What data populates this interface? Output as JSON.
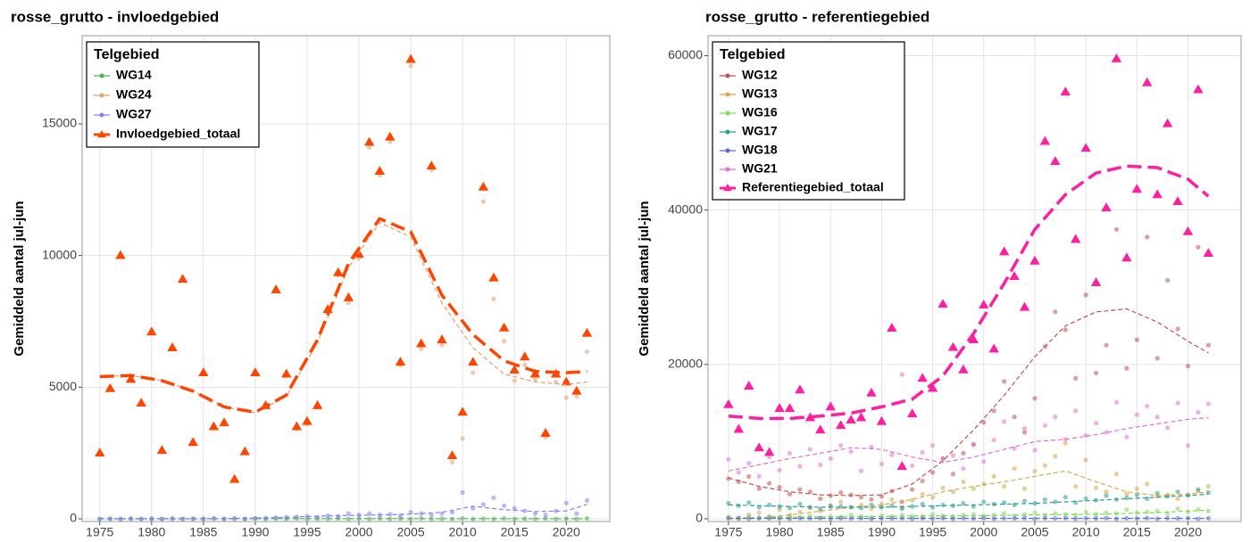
{
  "chart_data": [
    {
      "type": "scatter",
      "title": "rosse_grutto - invloedgebied",
      "ylabel": "Gemiddeld aantal jul-jun",
      "legend_title": "Telgebied",
      "legend": "top-left",
      "grid": true,
      "x": [
        1975,
        1976,
        1977,
        1978,
        1979,
        1980,
        1981,
        1982,
        1983,
        1984,
        1985,
        1986,
        1987,
        1988,
        1989,
        1990,
        1991,
        1992,
        1993,
        1994,
        1995,
        1996,
        1997,
        1998,
        1999,
        2000,
        2001,
        2002,
        2003,
        2004,
        2005,
        2006,
        2007,
        2008,
        2009,
        2010,
        2011,
        2012,
        2013,
        2014,
        2015,
        2016,
        2017,
        2018,
        2019,
        2020,
        2021,
        2022
      ],
      "trend_x": [
        1975,
        1978,
        1981,
        1984,
        1987,
        1990,
        1993,
        1996,
        1999,
        2002,
        2005,
        2008,
        2011,
        2014,
        2017,
        2020,
        2022
      ],
      "xlim": [
        1973.3,
        2024.2
      ],
      "xticks": [
        1975,
        1980,
        1985,
        1990,
        1995,
        2000,
        2005,
        2010,
        2015,
        2020
      ],
      "ylim": [
        -100,
        18350
      ],
      "yticks": [
        0,
        5000,
        10000,
        15000
      ],
      "series": [
        {
          "name": "WG14",
          "color": "#4caf50",
          "marker": "circle",
          "values": [
            0,
            10,
            0,
            20,
            0,
            10,
            0,
            20,
            0,
            10,
            0,
            20,
            0,
            10,
            0,
            20,
            0,
            10,
            0,
            20,
            0,
            10,
            0,
            20,
            0,
            10,
            0,
            20,
            0,
            10,
            0,
            20,
            0,
            10,
            0,
            20,
            0,
            10,
            0,
            20,
            0,
            10,
            0,
            20,
            0,
            10,
            0,
            20
          ],
          "trend": [
            10,
            10,
            10,
            10,
            10,
            10,
            10,
            10,
            10,
            10,
            10,
            10,
            10,
            10,
            10,
            10,
            10
          ]
        },
        {
          "name": "WG24",
          "color": "#e0a070",
          "marker": "circle",
          "values": [
            2500,
            4950,
            10000,
            5300,
            4400,
            7100,
            2600,
            6500,
            9100,
            2900,
            5550,
            3490,
            3650,
            1480,
            2550,
            5530,
            4270,
            8650,
            5440,
            3420,
            3600,
            4240,
            7830,
            9250,
            8200,
            9900,
            14100,
            13050,
            14320,
            5830,
            17200,
            6450,
            13250,
            6600,
            2150,
            3050,
            5550,
            12050,
            8350,
            6750,
            5250,
            5850,
            5300,
            3100,
            5200,
            4600,
            4650,
            6350
          ],
          "trend": [
            5400,
            5450,
            5250,
            4850,
            4250,
            4030,
            4650,
            6700,
            9550,
            11250,
            10700,
            8200,
            6500,
            5500,
            5200,
            5100,
            5200
          ]
        },
        {
          "name": "WG27",
          "color": "#8080f0",
          "marker": "circle",
          "values": [
            0,
            0,
            0,
            0,
            0,
            0,
            0,
            0,
            0,
            0,
            0,
            10,
            0,
            20,
            0,
            20,
            30,
            50,
            60,
            80,
            100,
            60,
            120,
            100,
            200,
            150,
            200,
            150,
            180,
            120,
            250,
            200,
            150,
            200,
            250,
            1000,
            400,
            550,
            800,
            500,
            400,
            300,
            200,
            150,
            300,
            600,
            200,
            700
          ],
          "trend": [
            0,
            0,
            0,
            0,
            10,
            30,
            60,
            100,
            130,
            150,
            180,
            250,
            480,
            350,
            280,
            300,
            550
          ]
        },
        {
          "name": "Invloedgebied_totaal",
          "color": "#ff4500",
          "marker": "triangle",
          "values": [
            2500,
            4950,
            10000,
            5300,
            4400,
            7100,
            2600,
            6500,
            9100,
            2900,
            5550,
            3500,
            3650,
            1500,
            2550,
            5550,
            4300,
            8700,
            5500,
            3500,
            3700,
            4300,
            7950,
            9350,
            8400,
            10050,
            14300,
            13200,
            14500,
            5950,
            17450,
            6650,
            13400,
            6800,
            2400,
            4050,
            5950,
            12600,
            9150,
            7250,
            5650,
            6150,
            5500,
            3250,
            5500,
            5200,
            4850,
            7050
          ],
          "trend": [
            5400,
            5450,
            5250,
            4850,
            4250,
            4050,
            4700,
            6800,
            9700,
            11400,
            10900,
            8500,
            7000,
            6000,
            5600,
            5550,
            5600
          ]
        }
      ]
    },
    {
      "type": "scatter",
      "title": "rosse_grutto - referentiegebied",
      "ylabel": "Gemiddeld aantal jul-jun",
      "legend_title": "Telgebied",
      "legend": "top-left",
      "grid": true,
      "x": [
        1975,
        1976,
        1977,
        1978,
        1979,
        1980,
        1981,
        1982,
        1983,
        1984,
        1985,
        1986,
        1987,
        1988,
        1989,
        1990,
        1991,
        1992,
        1993,
        1994,
        1995,
        1996,
        1997,
        1998,
        1999,
        2000,
        2001,
        2002,
        2003,
        2004,
        2005,
        2006,
        2007,
        2008,
        2009,
        2010,
        2011,
        2012,
        2013,
        2014,
        2015,
        2016,
        2017,
        2018,
        2019,
        2020,
        2021,
        2022
      ],
      "trend_x": [
        1975,
        1978,
        1981,
        1984,
        1987,
        1990,
        1993,
        1996,
        1999,
        2002,
        2005,
        2008,
        2011,
        2014,
        2017,
        2020,
        2022
      ],
      "xlim": [
        1973.0,
        2025.2
      ],
      "xticks": [
        1975,
        1980,
        1985,
        1990,
        1995,
        2000,
        2005,
        2010,
        2015,
        2020
      ],
      "ylim": [
        -350,
        62600
      ],
      "yticks": [
        0,
        20000,
        40000,
        60000
      ],
      "series": [
        {
          "name": "WG12",
          "color": "#c0504d",
          "marker": "circle",
          "values": [
            5200,
            4800,
            5500,
            3900,
            4600,
            4100,
            3200,
            3800,
            3500,
            2600,
            3000,
            3400,
            3100,
            2800,
            2500,
            2900,
            3600,
            2200,
            3800,
            4900,
            6000,
            7800,
            5800,
            8500,
            9600,
            12500,
            14000,
            17800,
            13200,
            11200,
            15600,
            22300,
            26800,
            24500,
            18200,
            29000,
            18900,
            22500,
            37500,
            19500,
            23200,
            36500,
            20800,
            30900,
            24600,
            19800,
            35200,
            22500
          ],
          "trend": [
            5300,
            4200,
            3500,
            3100,
            3000,
            3100,
            4500,
            7500,
            11500,
            16000,
            21000,
            25000,
            26800,
            27200,
            25500,
            23000,
            21500
          ]
        },
        {
          "name": "WG13",
          "color": "#d4a84b",
          "marker": "circle",
          "values": [
            200,
            0,
            500,
            800,
            300,
            1200,
            500,
            900,
            1400,
            1000,
            1600,
            2200,
            1500,
            1800,
            1300,
            1900,
            2500,
            1500,
            2400,
            3200,
            2800,
            4000,
            3500,
            4800,
            3900,
            4500,
            5500,
            4200,
            6500,
            3900,
            6200,
            6900,
            8100,
            9800,
            4200,
            7600,
            4000,
            3500,
            5800,
            3200,
            3900,
            4500,
            2900,
            3100,
            2600,
            3000,
            3600,
            4200
          ],
          "trend": [
            0,
            100,
            500,
            1000,
            1500,
            1800,
            2500,
            3500,
            4200,
            4800,
            5500,
            6200,
            4800,
            3500,
            3000,
            3200,
            3500
          ]
        },
        {
          "name": "WG16",
          "color": "#7ed957",
          "marker": "circle",
          "values": [
            200,
            100,
            300,
            150,
            250,
            100,
            300,
            200,
            400,
            150,
            300,
            250,
            500,
            300,
            200,
            400,
            300,
            500,
            350,
            300,
            600,
            400,
            300,
            500,
            600,
            400,
            500,
            700,
            400,
            600,
            800,
            500,
            700,
            600,
            500,
            900,
            600,
            800,
            700,
            1200,
            800,
            900,
            1000,
            700,
            1300,
            900,
            1200,
            1000
          ],
          "trend": [
            100,
            150,
            200,
            250,
            300,
            300,
            350,
            400,
            400,
            450,
            500,
            550,
            600,
            700,
            800,
            1000,
            1100
          ]
        },
        {
          "name": "WG17",
          "color": "#2a9d8f",
          "marker": "circle",
          "values": [
            2000,
            1700,
            2100,
            1500,
            1800,
            1600,
            1400,
            1900,
            1500,
            1300,
            1700,
            1600,
            1500,
            1400,
            1800,
            1500,
            1700,
            1300,
            1600,
            1900,
            1500,
            1800,
            1700,
            2000,
            1600,
            2200,
            1900,
            2100,
            1800,
            2300,
            2000,
            2500,
            2200,
            2800,
            2100,
            2600,
            2400,
            3000,
            2500,
            2700,
            3100,
            2600,
            3300,
            2900,
            3500,
            3100,
            3800,
            3400
          ],
          "trend": [
            1800,
            1700,
            1600,
            1500,
            1500,
            1500,
            1600,
            1700,
            1800,
            1900,
            2000,
            2200,
            2400,
            2600,
            2800,
            3000,
            3200
          ]
        },
        {
          "name": "WG18",
          "color": "#5b6bd1",
          "marker": "circle",
          "values": [
            50,
            100,
            0,
            80,
            50,
            100,
            0,
            80,
            50,
            100,
            0,
            80,
            50,
            100,
            0,
            80,
            50,
            100,
            0,
            80,
            50,
            100,
            0,
            80,
            50,
            100,
            0,
            80,
            50,
            100,
            0,
            80,
            50,
            100,
            0,
            80,
            50,
            100,
            0,
            80,
            50,
            100,
            0,
            80,
            50,
            100,
            0,
            80
          ],
          "trend": [
            60,
            60,
            60,
            60,
            60,
            60,
            60,
            60,
            60,
            60,
            60,
            60,
            60,
            60,
            60,
            60,
            60
          ]
        },
        {
          "name": "WG21",
          "color": "#e070d0",
          "marker": "circle",
          "values": [
            7700,
            6000,
            7200,
            5500,
            8000,
            6300,
            8500,
            6800,
            9000,
            7000,
            7800,
            9500,
            8700,
            6200,
            9300,
            7100,
            8300,
            18700,
            6900,
            8600,
            9500,
            7800,
            8200,
            6500,
            9700,
            7400,
            10200,
            12600,
            9100,
            11700,
            8900,
            12100,
            13200,
            10300,
            14000,
            10800,
            12400,
            11200,
            15100,
            10600,
            13500,
            14600,
            13200,
            11800,
            15000,
            9500,
            13800,
            14900
          ],
          "trend": [
            6200,
            7000,
            7800,
            8500,
            9200,
            9000,
            8000,
            7300,
            8000,
            9000,
            10000,
            10300,
            10900,
            11700,
            12300,
            12900,
            13100
          ]
        },
        {
          "name": "Referentiegebied_totaal",
          "color": "#ff1fa0",
          "marker": "triangle",
          "values": [
            14800,
            11600,
            17200,
            9200,
            8600,
            14300,
            14300,
            16700,
            13100,
            11500,
            14500,
            12100,
            12800,
            13100,
            16300,
            12600,
            24700,
            6800,
            13600,
            18200,
            16900,
            27800,
            22200,
            19300,
            23200,
            27700,
            22000,
            34600,
            31400,
            27400,
            33400,
            48900,
            46300,
            55300,
            36200,
            48000,
            30600,
            40300,
            59600,
            33800,
            42700,
            56500,
            42000,
            51200,
            41100,
            37200,
            55600,
            34400
          ],
          "trend": [
            13300,
            13000,
            13000,
            13300,
            13700,
            14500,
            15500,
            18500,
            24000,
            30500,
            37500,
            42000,
            44800,
            45700,
            45500,
            44000,
            41800
          ]
        }
      ]
    }
  ]
}
